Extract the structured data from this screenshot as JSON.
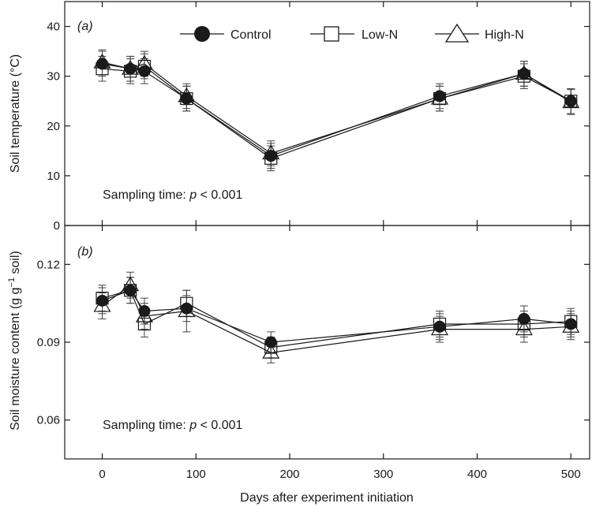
{
  "chart_data": [
    {
      "panel": "(a)",
      "type": "line",
      "ylabel": "Soil temperature (°C)",
      "xlabel": "",
      "xlim": [
        -40,
        520
      ],
      "ylim": [
        0,
        45
      ],
      "yticks": [
        0,
        10,
        20,
        30,
        40
      ],
      "annotation_prefix": "Sampling time: ",
      "annotation_p": "p",
      "annotation_suffix": " < 0.001",
      "legend": {
        "placement": "top-center",
        "entries": [
          "Control",
          "Low-N",
          "High-N"
        ]
      },
      "x": [
        0,
        30,
        45,
        90,
        180,
        360,
        450,
        500
      ],
      "series": [
        {
          "name": "Control",
          "marker": "circle-filled",
          "values": [
            32.5,
            31.5,
            31.0,
            25.5,
            14.0,
            26.0,
            30.5,
            25.0
          ],
          "err": [
            2.5,
            2.5,
            2.5,
            2.5,
            2.5,
            2.5,
            2.5,
            2.5
          ]
        },
        {
          "name": "Low-N",
          "marker": "square-open",
          "values": [
            31.5,
            31.0,
            32.0,
            25.5,
            13.5,
            25.5,
            30.0,
            25.0
          ],
          "err": [
            2.5,
            2.5,
            2.5,
            2.5,
            2.5,
            2.5,
            2.5,
            2.5
          ]
        },
        {
          "name": "High-N",
          "marker": "triangle-open",
          "values": [
            32.8,
            31.5,
            32.5,
            26.0,
            14.5,
            25.5,
            30.5,
            24.8
          ],
          "err": [
            2.5,
            2.5,
            2.5,
            2.5,
            2.5,
            2.5,
            2.5,
            2.5
          ]
        }
      ]
    },
    {
      "panel": "(b)",
      "type": "line",
      "ylabel_prefix": "Soil moisture content (g g",
      "ylabel_sup": "−1",
      "ylabel_suffix": " soil)",
      "xlabel": "Days after experiment initiation",
      "xlim": [
        -40,
        520
      ],
      "ylim": [
        0.045,
        0.135
      ],
      "yticks": [
        0.06,
        0.09,
        0.12
      ],
      "yticklabels": [
        "0.06",
        "0.09",
        "0.12"
      ],
      "xticks": [
        0,
        100,
        200,
        300,
        400,
        500
      ],
      "annotation_prefix": "Sampling time: ",
      "annotation_p": "p",
      "annotation_suffix": " < 0.001",
      "x": [
        0,
        30,
        45,
        90,
        180,
        360,
        450,
        500
      ],
      "series": [
        {
          "name": "Control",
          "marker": "circle-filled",
          "values": [
            0.106,
            0.11,
            0.102,
            0.103,
            0.09,
            0.096,
            0.099,
            0.097
          ],
          "err": [
            0.005,
            0.005,
            0.005,
            0.005,
            0.004,
            0.005,
            0.005,
            0.005
          ]
        },
        {
          "name": "Low-N",
          "marker": "square-open",
          "values": [
            0.107,
            0.11,
            0.097,
            0.105,
            0.088,
            0.097,
            0.097,
            0.098
          ],
          "err": [
            0.005,
            0.005,
            0.005,
            0.005,
            0.004,
            0.005,
            0.005,
            0.005
          ]
        },
        {
          "name": "High-N",
          "marker": "triangle-open",
          "values": [
            0.104,
            0.112,
            0.1,
            0.102,
            0.086,
            0.095,
            0.095,
            0.096
          ],
          "err": [
            0.005,
            0.005,
            0.005,
            0.008,
            0.004,
            0.005,
            0.005,
            0.005
          ]
        }
      ]
    }
  ]
}
